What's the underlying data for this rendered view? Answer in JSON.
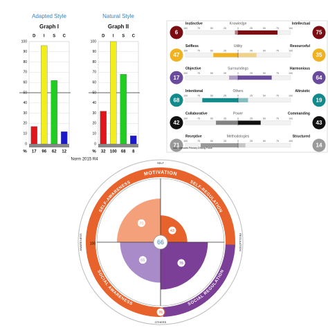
{
  "chart_data": [
    {
      "type": "bar",
      "subtitle": "Adapted Style",
      "title": "Graph I",
      "categories": [
        "D",
        "I",
        "S",
        "C"
      ],
      "values": [
        17,
        96,
        62,
        12
      ],
      "colors": [
        "#e0161b",
        "#f2ee1a",
        "#22cc22",
        "#1a1acc"
      ],
      "ylim": [
        0,
        100
      ],
      "yticks": [
        0,
        10,
        20,
        30,
        40,
        50,
        60,
        70,
        80,
        90,
        100
      ],
      "midline": 50,
      "row_label": "%",
      "grid": true
    },
    {
      "type": "bar",
      "subtitle": "Natural Style",
      "title": "Graph II",
      "categories": [
        "D",
        "I",
        "S",
        "C"
      ],
      "values": [
        32,
        100,
        68,
        8
      ],
      "colors": [
        "#e0161b",
        "#f2ee1a",
        "#22cc22",
        "#1a1acc"
      ],
      "ylim": [
        0,
        100
      ],
      "yticks": [
        0,
        10,
        20,
        30,
        40,
        50,
        60,
        70,
        80,
        90,
        100
      ],
      "midline": 50,
      "row_label": "%",
      "grid": true
    }
  ],
  "footnote": "Norm 2015 R4",
  "motivators": {
    "scale": [
      100,
      75,
      50,
      25,
      0,
      25,
      50,
      75,
      100
    ],
    "rows": [
      {
        "left_value": 6,
        "left_label": "Instinctive",
        "center_label": "Knowledge",
        "right_label": "Intellectual",
        "right_value": 75,
        "color": "#7a0c12"
      },
      {
        "left_value": 47,
        "left_label": "Selfless",
        "center_label": "Utility",
        "right_label": "Resourceful",
        "right_value": 35,
        "color": "#f0b123"
      },
      {
        "left_value": 17,
        "left_label": "Objective",
        "center_label": "Surroundings",
        "right_label": "Harmonious",
        "right_value": 64,
        "color": "#6a4a9c"
      },
      {
        "left_value": 68,
        "left_label": "Intentional",
        "center_label": "Others",
        "right_label": "Altruistic",
        "right_value": 19,
        "color": "#128a8c"
      },
      {
        "left_value": 42,
        "left_label": "Collaborative",
        "center_label": "Power",
        "right_label": "Commanding",
        "right_value": 43,
        "color": "#111111"
      },
      {
        "left_value": 71,
        "left_label": "Receptive",
        "center_label": "Methodologies",
        "right_label": "Structured",
        "right_value": 14,
        "color": "#9a9a9a"
      }
    ],
    "legend": "Denotes Primary Driving Force"
  },
  "wheel": {
    "center_value": 66,
    "ring_label": "MOTIVATION",
    "ring_value": 76,
    "scale_label": 100,
    "quadrants": [
      {
        "label": "SELF-AWARENESS",
        "value": 70,
        "color": "#f4a07a"
      },
      {
        "label": "SELF-REGULATION",
        "value": 43,
        "color": "#e8622c"
      },
      {
        "label": "SOCIAL REGULATION",
        "value": 76,
        "color": "#7b3f98"
      },
      {
        "label": "SOCIAL AWARENESS",
        "value": 65,
        "color": "#a98bc9"
      }
    ],
    "top_label": "SELF",
    "bottom_label": "OTHERS",
    "right_label": "REGULATION",
    "left_label": "AWARENESS"
  }
}
